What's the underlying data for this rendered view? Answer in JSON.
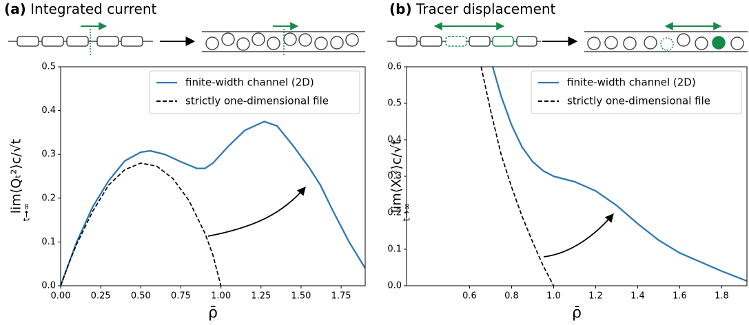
{
  "chart_data": [
    {
      "type": "line",
      "label": "(a)",
      "title": "Integrated current",
      "xlabel": "ρ̄",
      "ylabel": "lim⟨Qₜ²⟩c/√t",
      "ylabel_sub": "t→∞",
      "xlim": [
        0,
        1.9
      ],
      "ylim": [
        0,
        0.5
      ],
      "xticks": [
        {
          "value": 0,
          "label": "0.00"
        },
        0.25,
        {
          "value": 0.5,
          "label": "0.50"
        },
        0.75,
        {
          "value": 1,
          "label": "1.00"
        },
        1.25,
        {
          "value": 1.5,
          "label": "1.50"
        },
        1.75
      ],
      "yticks": [
        {
          "value": 0,
          "label": "0.0"
        },
        0.1,
        0.2,
        0.3,
        0.4,
        0.5
      ],
      "legend": "upper right",
      "series": [
        {
          "name": "finite-width channel (2D)",
          "color": "#2e78b4",
          "linestyle": "solid",
          "x": [
            0,
            0.1,
            0.2,
            0.3,
            0.4,
            0.5,
            0.56,
            0.65,
            0.75,
            0.85,
            0.9,
            0.95,
            1.05,
            1.15,
            1.27,
            1.35,
            1.45,
            1.55,
            1.62,
            1.7,
            1.8,
            1.9
          ],
          "values": [
            0,
            0.1,
            0.18,
            0.24,
            0.285,
            0.305,
            0.308,
            0.3,
            0.283,
            0.268,
            0.268,
            0.28,
            0.32,
            0.355,
            0.375,
            0.365,
            0.32,
            0.27,
            0.23,
            0.17,
            0.1,
            0.04
          ]
        },
        {
          "name": "strictly one-dimensional file",
          "color": "#000000",
          "linestyle": "dashed",
          "x": [
            0,
            0.05,
            0.1,
            0.2,
            0.3,
            0.4,
            0.5,
            0.6,
            0.7,
            0.8,
            0.9,
            0.95,
            1.0
          ],
          "values": [
            0,
            0.05,
            0.095,
            0.17,
            0.23,
            0.265,
            0.28,
            0.273,
            0.245,
            0.195,
            0.12,
            0.07,
            0
          ]
        }
      ]
    },
    {
      "type": "line",
      "label": "(b)",
      "title": "Tracer displacement",
      "xlabel": "ρ̄",
      "ylabel": "lim⟨Xₜ²⟩c/√t",
      "ylabel_sub": "t→∞",
      "xlim": [
        0.3,
        1.92
      ],
      "ylim": [
        0,
        0.6
      ],
      "xticks": [
        0.6,
        0.8,
        {
          "value": 1,
          "label": "1.0"
        },
        1.2,
        1.4,
        1.6,
        1.8
      ],
      "yticks": [
        {
          "value": 0,
          "label": "0.0"
        },
        0.1,
        0.2,
        0.3,
        0.4,
        0.5,
        0.6
      ],
      "legend": "upper right",
      "series": [
        {
          "name": "finite-width channel (2D)",
          "color": "#2e78b4",
          "linestyle": "solid",
          "x": [
            0.71,
            0.75,
            0.8,
            0.85,
            0.9,
            0.95,
            1.0,
            1.1,
            1.2,
            1.3,
            1.4,
            1.5,
            1.6,
            1.7,
            1.8,
            1.92
          ],
          "values": [
            0.6,
            0.52,
            0.44,
            0.38,
            0.34,
            0.315,
            0.3,
            0.285,
            0.26,
            0.22,
            0.17,
            0.125,
            0.09,
            0.065,
            0.04,
            0.013
          ]
        },
        {
          "name": "strictly one-dimensional file",
          "color": "#000000",
          "linestyle": "dashed",
          "x": [
            0.655,
            0.7,
            0.75,
            0.8,
            0.85,
            0.9,
            0.95,
            1.0
          ],
          "values": [
            0.6,
            0.48,
            0.36,
            0.27,
            0.19,
            0.12,
            0.055,
            0
          ]
        }
      ]
    }
  ]
}
